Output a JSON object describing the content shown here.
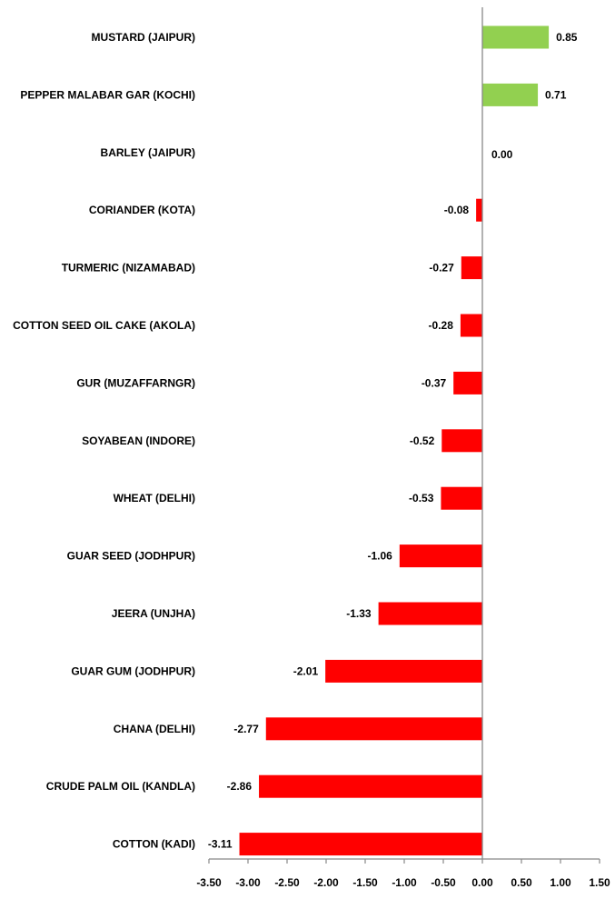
{
  "chart_data": {
    "type": "bar",
    "orientation": "horizontal",
    "title": "",
    "xlabel": "",
    "ylabel": "",
    "categories": [
      "MUSTARD (JAIPUR)",
      "PEPPER MALABAR GAR (KOCHI)",
      "BARLEY (JAIPUR)",
      "CORIANDER (KOTA)",
      "TURMERIC (NIZAMABAD)",
      "COTTON SEED OIL CAKE (AKOLA)",
      "GUR (MUZAFFARNGR)",
      "SOYABEAN (INDORE)",
      "WHEAT (DELHI)",
      "GUAR SEED (JODHPUR)",
      "JEERA (UNJHA)",
      "GUAR GUM (JODHPUR)",
      "CHANA (DELHI)",
      "CRUDE PALM OIL (KANDLA)",
      "COTTON (KADI)"
    ],
    "values": [
      0.85,
      0.71,
      0.0,
      -0.08,
      -0.27,
      -0.28,
      -0.37,
      -0.52,
      -0.53,
      -1.06,
      -1.33,
      -2.01,
      -2.77,
      -2.86,
      -3.11
    ],
    "value_labels": [
      "0.85",
      "0.71",
      "0.00",
      "-0.08",
      "-0.27",
      "-0.28",
      "-0.37",
      "-0.52",
      "-0.53",
      "-1.06",
      "-1.33",
      "-2.01",
      "-2.77",
      "-2.86",
      "-3.11"
    ],
    "xlim": [
      -3.5,
      1.5
    ],
    "x_ticks": [
      "-3.50",
      "-3.00",
      "-2.50",
      "-2.00",
      "-1.50",
      "-1.00",
      "-0.50",
      "0.00",
      "0.50",
      "1.00",
      "1.50"
    ],
    "grid": false,
    "legend": "none",
    "colors": {
      "positive": "#92D050",
      "negative": "#FF0000",
      "axis": "#888888"
    }
  }
}
